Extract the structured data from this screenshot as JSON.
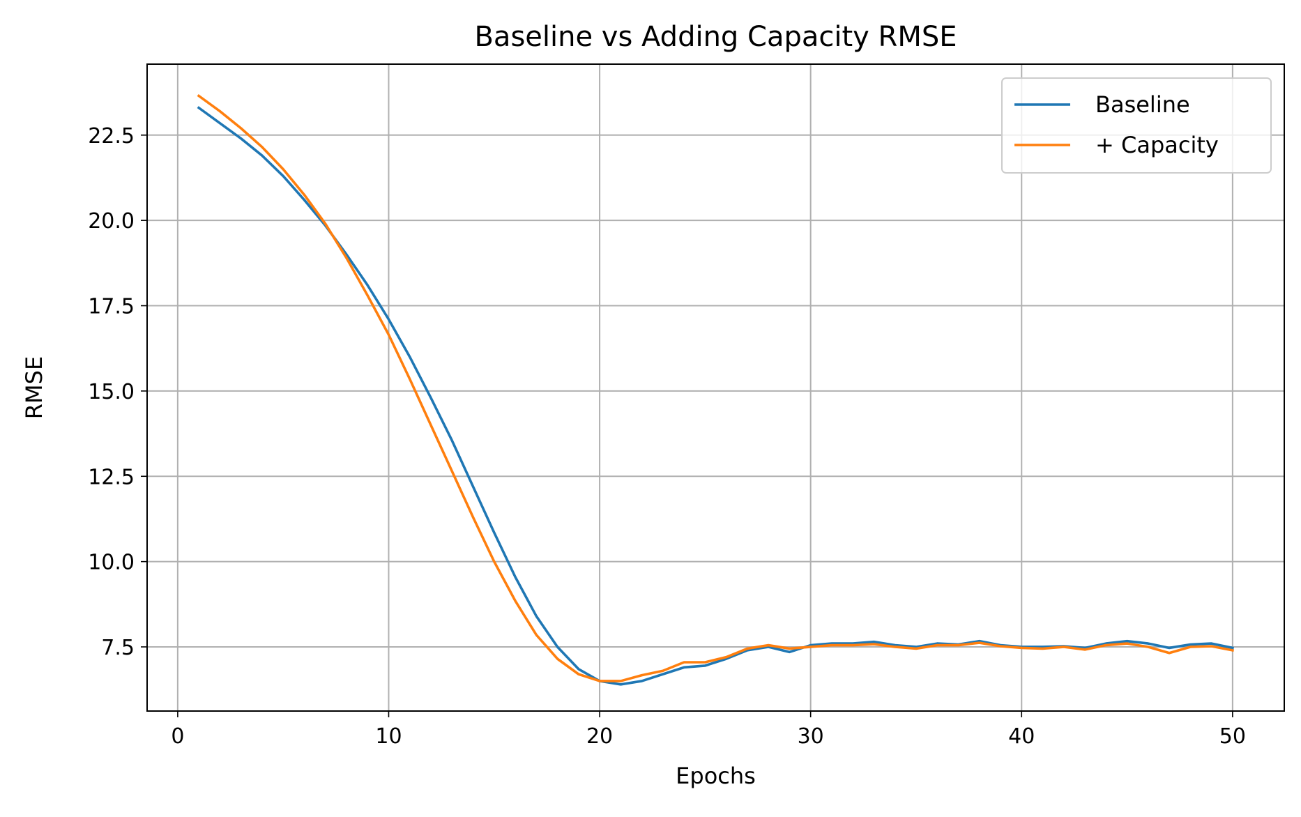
{
  "chart_data": {
    "type": "line",
    "title": "Baseline vs Adding Capacity RMSE",
    "xlabel": "Epochs",
    "ylabel": "RMSE",
    "xlim": [
      -1.45,
      52.45
    ],
    "ylim": [
      5.62,
      24.58
    ],
    "xticks": [
      0,
      10,
      20,
      30,
      40,
      50
    ],
    "xtick_labels": [
      "0",
      "10",
      "20",
      "30",
      "40",
      "50"
    ],
    "yticks": [
      7.5,
      10.0,
      12.5,
      15.0,
      17.5,
      20.0,
      22.5
    ],
    "ytick_labels": [
      "7.5",
      "10.0",
      "12.5",
      "15.0",
      "17.5",
      "20.0",
      "22.5"
    ],
    "grid": true,
    "legend": {
      "position": "top-right"
    },
    "x": [
      1,
      2,
      3,
      4,
      5,
      6,
      7,
      8,
      9,
      10,
      11,
      12,
      13,
      14,
      15,
      16,
      17,
      18,
      19,
      20,
      21,
      22,
      23,
      24,
      25,
      26,
      27,
      28,
      29,
      30,
      31,
      32,
      33,
      34,
      35,
      36,
      37,
      38,
      39,
      40,
      41,
      42,
      43,
      44,
      45,
      46,
      47,
      48,
      49,
      50
    ],
    "series": [
      {
        "name": "Baseline",
        "color": "#1f77b4",
        "values": [
          23.3,
          22.85,
          22.4,
          21.9,
          21.3,
          20.6,
          19.85,
          19.0,
          18.1,
          17.1,
          16.0,
          14.8,
          13.55,
          12.2,
          10.85,
          9.55,
          8.4,
          7.5,
          6.85,
          6.5,
          6.4,
          6.5,
          6.7,
          6.9,
          6.95,
          7.15,
          7.4,
          7.5,
          7.35,
          7.55,
          7.6,
          7.6,
          7.65,
          7.55,
          7.5,
          7.6,
          7.57,
          7.67,
          7.55,
          7.5,
          7.5,
          7.52,
          7.47,
          7.6,
          7.67,
          7.6,
          7.47,
          7.57,
          7.6,
          7.47
        ]
      },
      {
        "name": "+ Capacity",
        "color": "#ff7f0e",
        "values": [
          23.65,
          23.2,
          22.7,
          22.15,
          21.5,
          20.75,
          19.9,
          18.9,
          17.8,
          16.65,
          15.35,
          14.0,
          12.65,
          11.3,
          10.0,
          8.85,
          7.85,
          7.15,
          6.7,
          6.5,
          6.5,
          6.67,
          6.8,
          7.05,
          7.05,
          7.2,
          7.45,
          7.55,
          7.45,
          7.5,
          7.55,
          7.55,
          7.58,
          7.5,
          7.45,
          7.55,
          7.55,
          7.62,
          7.52,
          7.47,
          7.45,
          7.5,
          7.42,
          7.55,
          7.6,
          7.5,
          7.32,
          7.5,
          7.52,
          7.4
        ]
      }
    ]
  }
}
